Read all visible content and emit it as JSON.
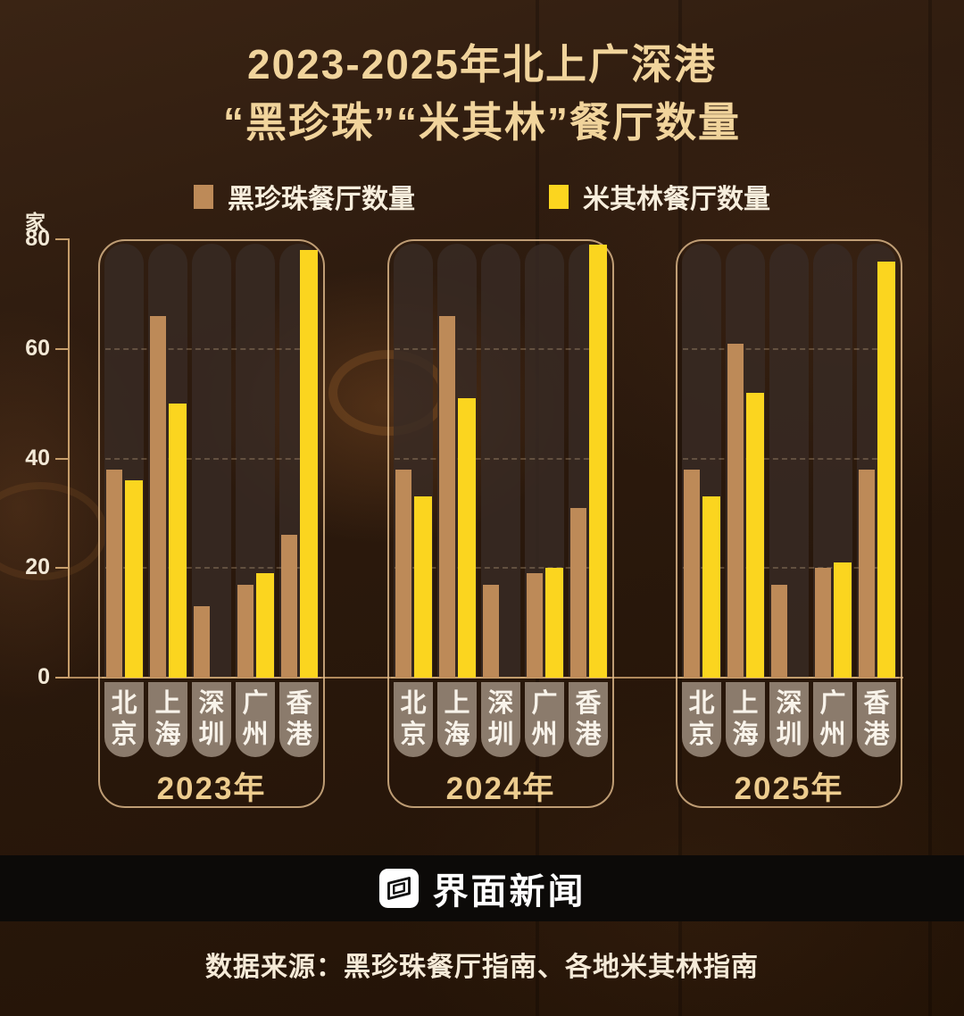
{
  "title": {
    "line1": "2023-2025年北上广深港",
    "line2": "“黑珍珠”“米其林”餐厅数量"
  },
  "legend": [
    {
      "label": "黑珍珠餐厅数量",
      "color": "#bd8a58"
    },
    {
      "label": "米其林餐厅数量",
      "color": "#fbd51f"
    }
  ],
  "y_axis": {
    "unit_label": "家",
    "ticks": [
      80,
      60,
      40,
      20,
      0
    ]
  },
  "chart_data": {
    "type": "bar",
    "title": "2023-2025年北上广深港“黑珍珠”“米其林”餐厅数量",
    "xlabel": "",
    "ylabel": "家",
    "ylim": [
      0,
      80
    ],
    "grid": "dashed horizontal lines at 20, 40, 60",
    "legend_position": "top",
    "categories": [
      "北京",
      "上海",
      "深圳",
      "广州",
      "香港"
    ],
    "colors": {
      "black_pearl": "#bd8a58",
      "michelin": "#fbd51f"
    },
    "groups": [
      {
        "year": "2023年",
        "series": [
          {
            "name": "黑珍珠餐厅数量",
            "values": [
              38,
              66,
              13,
              17,
              26
            ]
          },
          {
            "name": "米其林餐厅数量",
            "values": [
              36,
              50,
              null,
              19,
              78
            ]
          }
        ]
      },
      {
        "year": "2024年",
        "series": [
          {
            "name": "黑珍珠餐厅数量",
            "values": [
              38,
              66,
              17,
              19,
              31
            ]
          },
          {
            "name": "米其林餐厅数量",
            "values": [
              33,
              51,
              null,
              20,
              79
            ]
          }
        ]
      },
      {
        "year": "2025年",
        "series": [
          {
            "name": "黑珍珠餐厅数量",
            "values": [
              38,
              61,
              17,
              20,
              38
            ]
          },
          {
            "name": "米其林餐厅数量",
            "values": [
              33,
              52,
              null,
              21,
              76
            ]
          }
        ]
      }
    ]
  },
  "footer": {
    "brand": "界面新闻",
    "source": "数据来源：黑珍珠餐厅指南、各地米其林指南"
  }
}
